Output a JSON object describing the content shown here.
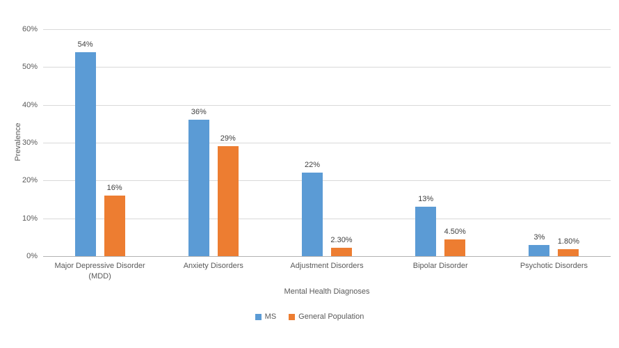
{
  "chart_data": {
    "type": "bar",
    "categories": [
      "Major Depressive Disorder (MDD)",
      "Anxiety Disorders",
      "Adjustment Disorders",
      "Bipolar Disorder",
      "Psychotic Disorders"
    ],
    "series": [
      {
        "name": "MS",
        "color": "#5b9bd5",
        "values": [
          54,
          36,
          22,
          13,
          3
        ],
        "labels": [
          "54%",
          "36%",
          "22%",
          "13%",
          "3%"
        ]
      },
      {
        "name": "General Population",
        "color": "#ed7d31",
        "values": [
          16,
          29,
          2.3,
          4.5,
          1.8
        ],
        "labels": [
          "16%",
          "29%",
          "2.30%",
          "4.50%",
          "1.80%"
        ]
      }
    ],
    "title": "",
    "xlabel": "Mental Health Diagnoses",
    "ylabel": "Prevalence",
    "ylim": [
      0,
      60
    ],
    "ytick_labels": [
      "60%",
      "50%",
      "40%",
      "30%",
      "20%",
      "10%",
      "0%"
    ],
    "grid": true,
    "legend_position": "bottom"
  },
  "colors": {
    "gridline": "#d9d9d9",
    "axis_line": "#b3b3b3",
    "text": "#595959",
    "value_label": "#404040"
  }
}
